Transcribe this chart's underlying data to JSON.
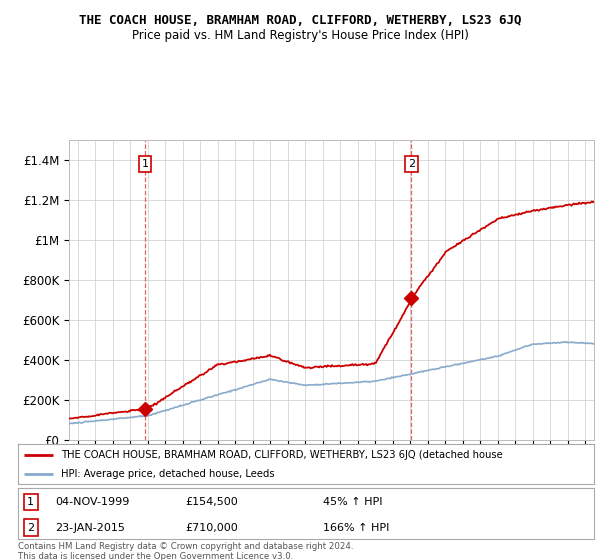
{
  "title": "THE COACH HOUSE, BRAMHAM ROAD, CLIFFORD, WETHERBY, LS23 6JQ",
  "subtitle": "Price paid vs. HM Land Registry's House Price Index (HPI)",
  "property_color": "#cc0000",
  "hpi_color": "#88aacc",
  "background_color": "#ffffff",
  "plot_bg_color": "#ffffff",
  "ylim": [
    0,
    1500000
  ],
  "yticks": [
    0,
    200000,
    400000,
    600000,
    800000,
    1000000,
    1200000,
    1400000
  ],
  "ytick_labels": [
    "£0",
    "£200K",
    "£400K",
    "£600K",
    "£800K",
    "£1M",
    "£1.2M",
    "£1.4M"
  ],
  "sale1": {
    "date": 1999.84,
    "price": 154500,
    "label": "1"
  },
  "sale2": {
    "date": 2015.06,
    "price": 710000,
    "label": "2"
  },
  "legend_property": "THE COACH HOUSE, BRAMHAM ROAD, CLIFFORD, WETHERBY, LS23 6JQ (detached house",
  "legend_hpi": "HPI: Average price, detached house, Leeds",
  "footnote": "Contains HM Land Registry data © Crown copyright and database right 2024.\nThis data is licensed under the Open Government Licence v3.0.",
  "xmin": 1995.5,
  "xmax": 2025.5
}
